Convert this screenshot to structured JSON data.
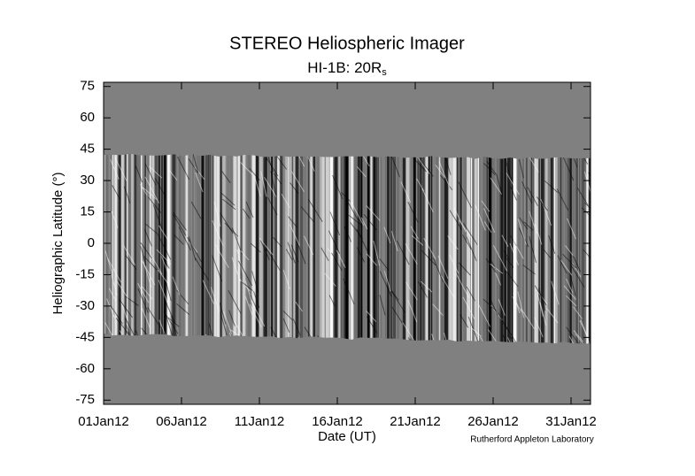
{
  "chart_data": {
    "type": "image",
    "title": "STEREO Heliospheric Imager",
    "subtitle": {
      "main": "HI-1B: 20R",
      "subscript": "s"
    },
    "ylabel": "Heliographic Latitude (°)",
    "xlabel": "Date (UT)",
    "credit": "Rutherford Appleton Laboratory",
    "xlim": [
      1,
      32.25
    ],
    "ylim": [
      -77,
      77
    ],
    "xticks": [
      {
        "value": 1,
        "label": "01Jan12"
      },
      {
        "value": 6,
        "label": "06Jan12"
      },
      {
        "value": 11,
        "label": "11Jan12"
      },
      {
        "value": 16,
        "label": "16Jan12"
      },
      {
        "value": 21,
        "label": "21Jan12"
      },
      {
        "value": 26,
        "label": "26Jan12"
      },
      {
        "value": 31,
        "label": "31Jan12"
      }
    ],
    "yticks": [
      75,
      60,
      45,
      30,
      15,
      0,
      -15,
      -30,
      -45,
      -60,
      -75
    ]
  }
}
